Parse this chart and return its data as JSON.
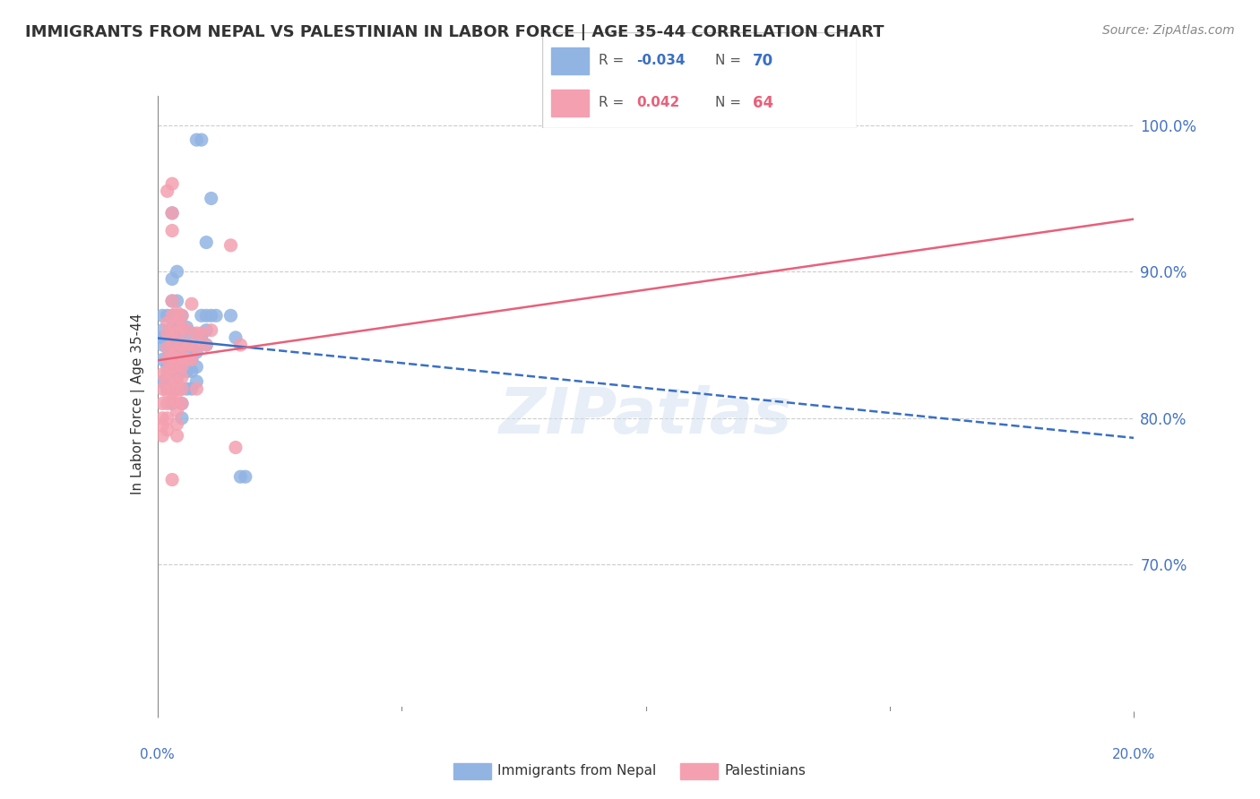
{
  "title": "IMMIGRANTS FROM NEPAL VS PALESTINIAN IN LABOR FORCE | AGE 35-44 CORRELATION CHART",
  "source": "Source: ZipAtlas.com",
  "ylabel": "In Labor Force | Age 35-44",
  "ytick_labels": [
    "100.0%",
    "90.0%",
    "80.0%",
    "70.0%"
  ],
  "ytick_values": [
    1.0,
    0.9,
    0.8,
    0.7
  ],
  "xmin": 0.0,
  "xmax": 0.2,
  "ymin": 0.6,
  "ymax": 1.02,
  "nepal_R": -0.034,
  "nepal_N": 70,
  "palestinian_R": 0.042,
  "palestinian_N": 64,
  "nepal_color": "#92b4e3",
  "palestinian_color": "#f4a0b0",
  "nepal_line_color": "#3a6fc4",
  "palestinian_line_color": "#e8607a",
  "legend_label_nepal": "Immigrants from Nepal",
  "legend_label_palestinian": "Palestinians",
  "watermark": "ZIPatlas",
  "nepal_points": [
    [
      0.001,
      0.87
    ],
    [
      0.001,
      0.855
    ],
    [
      0.001,
      0.84
    ],
    [
      0.001,
      0.825
    ],
    [
      0.001,
      0.86
    ],
    [
      0.001,
      0.85
    ],
    [
      0.002,
      0.87
    ],
    [
      0.002,
      0.857
    ],
    [
      0.002,
      0.848
    ],
    [
      0.002,
      0.84
    ],
    [
      0.002,
      0.835
    ],
    [
      0.002,
      0.828
    ],
    [
      0.002,
      0.82
    ],
    [
      0.003,
      0.94
    ],
    [
      0.003,
      0.895
    ],
    [
      0.003,
      0.88
    ],
    [
      0.003,
      0.87
    ],
    [
      0.003,
      0.862
    ],
    [
      0.003,
      0.855
    ],
    [
      0.003,
      0.848
    ],
    [
      0.003,
      0.84
    ],
    [
      0.003,
      0.835
    ],
    [
      0.003,
      0.828
    ],
    [
      0.003,
      0.82
    ],
    [
      0.003,
      0.81
    ],
    [
      0.004,
      0.9
    ],
    [
      0.004,
      0.88
    ],
    [
      0.004,
      0.87
    ],
    [
      0.004,
      0.86
    ],
    [
      0.004,
      0.85
    ],
    [
      0.004,
      0.842
    ],
    [
      0.004,
      0.835
    ],
    [
      0.004,
      0.828
    ],
    [
      0.004,
      0.82
    ],
    [
      0.005,
      0.87
    ],
    [
      0.005,
      0.858
    ],
    [
      0.005,
      0.848
    ],
    [
      0.005,
      0.84
    ],
    [
      0.005,
      0.832
    ],
    [
      0.005,
      0.82
    ],
    [
      0.005,
      0.81
    ],
    [
      0.005,
      0.8
    ],
    [
      0.006,
      0.862
    ],
    [
      0.006,
      0.85
    ],
    [
      0.006,
      0.84
    ],
    [
      0.006,
      0.832
    ],
    [
      0.006,
      0.82
    ],
    [
      0.007,
      0.858
    ],
    [
      0.007,
      0.848
    ],
    [
      0.007,
      0.84
    ],
    [
      0.007,
      0.832
    ],
    [
      0.007,
      0.82
    ],
    [
      0.008,
      0.99
    ],
    [
      0.008,
      0.845
    ],
    [
      0.008,
      0.835
    ],
    [
      0.008,
      0.825
    ],
    [
      0.009,
      0.99
    ],
    [
      0.009,
      0.87
    ],
    [
      0.009,
      0.855
    ],
    [
      0.01,
      0.92
    ],
    [
      0.01,
      0.87
    ],
    [
      0.01,
      0.86
    ],
    [
      0.01,
      0.85
    ],
    [
      0.011,
      0.95
    ],
    [
      0.011,
      0.87
    ],
    [
      0.012,
      0.87
    ],
    [
      0.015,
      0.87
    ],
    [
      0.016,
      0.855
    ],
    [
      0.017,
      0.76
    ],
    [
      0.018,
      0.76
    ]
  ],
  "palestinian_points": [
    [
      0.001,
      0.83
    ],
    [
      0.001,
      0.82
    ],
    [
      0.001,
      0.81
    ],
    [
      0.001,
      0.8
    ],
    [
      0.001,
      0.795
    ],
    [
      0.001,
      0.788
    ],
    [
      0.002,
      0.955
    ],
    [
      0.002,
      0.865
    ],
    [
      0.002,
      0.858
    ],
    [
      0.002,
      0.848
    ],
    [
      0.002,
      0.84
    ],
    [
      0.002,
      0.832
    ],
    [
      0.002,
      0.825
    ],
    [
      0.002,
      0.818
    ],
    [
      0.002,
      0.81
    ],
    [
      0.002,
      0.8
    ],
    [
      0.002,
      0.792
    ],
    [
      0.003,
      0.96
    ],
    [
      0.003,
      0.94
    ],
    [
      0.003,
      0.928
    ],
    [
      0.003,
      0.88
    ],
    [
      0.003,
      0.87
    ],
    [
      0.003,
      0.858
    ],
    [
      0.003,
      0.85
    ],
    [
      0.003,
      0.842
    ],
    [
      0.003,
      0.835
    ],
    [
      0.003,
      0.828
    ],
    [
      0.003,
      0.82
    ],
    [
      0.003,
      0.812
    ],
    [
      0.003,
      0.758
    ],
    [
      0.004,
      0.872
    ],
    [
      0.004,
      0.865
    ],
    [
      0.004,
      0.858
    ],
    [
      0.004,
      0.845
    ],
    [
      0.004,
      0.836
    ],
    [
      0.004,
      0.825
    ],
    [
      0.004,
      0.82
    ],
    [
      0.004,
      0.812
    ],
    [
      0.004,
      0.805
    ],
    [
      0.004,
      0.796
    ],
    [
      0.004,
      0.788
    ],
    [
      0.005,
      0.87
    ],
    [
      0.005,
      0.862
    ],
    [
      0.005,
      0.85
    ],
    [
      0.005,
      0.842
    ],
    [
      0.005,
      0.835
    ],
    [
      0.005,
      0.828
    ],
    [
      0.005,
      0.82
    ],
    [
      0.005,
      0.81
    ],
    [
      0.006,
      0.86
    ],
    [
      0.006,
      0.85
    ],
    [
      0.006,
      0.84
    ],
    [
      0.007,
      0.878
    ],
    [
      0.007,
      0.85
    ],
    [
      0.007,
      0.84
    ],
    [
      0.008,
      0.858
    ],
    [
      0.008,
      0.848
    ],
    [
      0.008,
      0.82
    ],
    [
      0.009,
      0.858
    ],
    [
      0.01,
      0.85
    ],
    [
      0.011,
      0.86
    ],
    [
      0.015,
      0.918
    ],
    [
      0.016,
      0.78
    ],
    [
      0.017,
      0.85
    ]
  ]
}
